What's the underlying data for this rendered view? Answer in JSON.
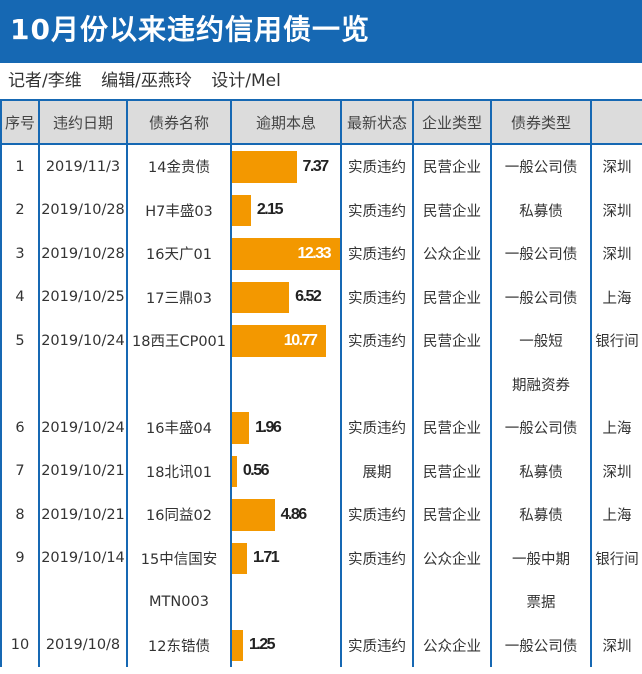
{
  "title": "10月份以来违约信用债一览",
  "byline": [
    "记者/李维",
    "编辑/巫燕玲",
    "设计/Mel"
  ],
  "headers": [
    "序号",
    "违约日期",
    "债券名称",
    "逾期本息",
    "最新状态",
    "企业类型",
    "债券类型",
    ""
  ],
  "bar_max": 12.33,
  "bar_color": "#f39800",
  "rows": [
    {
      "no": "1",
      "date": "2019/11/3",
      "name": "14金贵债",
      "amount": 7.37,
      "status": "实质违约",
      "company": "民营企业",
      "type": "一般公司债",
      "market": "深圳"
    },
    {
      "no": "2",
      "date": "2019/10/28",
      "name": "H7丰盛03",
      "amount": 2.15,
      "status": "实质违约",
      "company": "民营企业",
      "type": "私募债",
      "market": "深圳"
    },
    {
      "no": "3",
      "date": "2019/10/28",
      "name": "16天广01",
      "amount": 12.33,
      "status": "实质违约",
      "company": "公众企业",
      "type": "一般公司债",
      "market": "深圳"
    },
    {
      "no": "4",
      "date": "2019/10/25",
      "name": "17三鼎03",
      "amount": 6.52,
      "status": "实质违约",
      "company": "民营企业",
      "type": "一般公司债",
      "market": "上海"
    },
    {
      "no": "5",
      "date": "2019/10/24",
      "name": "18西王CP001",
      "amount": 10.77,
      "status": "实质违约",
      "company": "民营企业",
      "type": "一般短",
      "market": "银行间",
      "name2": "",
      "type2": "期融资券"
    },
    {
      "no": "6",
      "date": "2019/10/24",
      "name": "16丰盛04",
      "amount": 1.96,
      "status": "实质违约",
      "company": "民营企业",
      "type": "一般公司债",
      "market": "上海"
    },
    {
      "no": "7",
      "date": "2019/10/21",
      "name": "18北讯01",
      "amount": 0.56,
      "status": "展期",
      "company": "民营企业",
      "type": "私募债",
      "market": "深圳"
    },
    {
      "no": "8",
      "date": "2019/10/21",
      "name": "16同益02",
      "amount": 4.86,
      "status": "实质违约",
      "company": "民营企业",
      "type": "私募债",
      "market": "上海"
    },
    {
      "no": "9",
      "date": "2019/10/14",
      "name": "15中信国安",
      "amount": 1.71,
      "status": "实质违约",
      "company": "公众企业",
      "type": "一般中期",
      "market": "银行间",
      "name2": "MTN003",
      "type2": "票据"
    },
    {
      "no": "10",
      "date": "2019/10/8",
      "name": "12东锆债",
      "amount": 1.25,
      "status": "实质违约",
      "company": "公众企业",
      "type": "一般公司债",
      "market": "深圳"
    }
  ]
}
